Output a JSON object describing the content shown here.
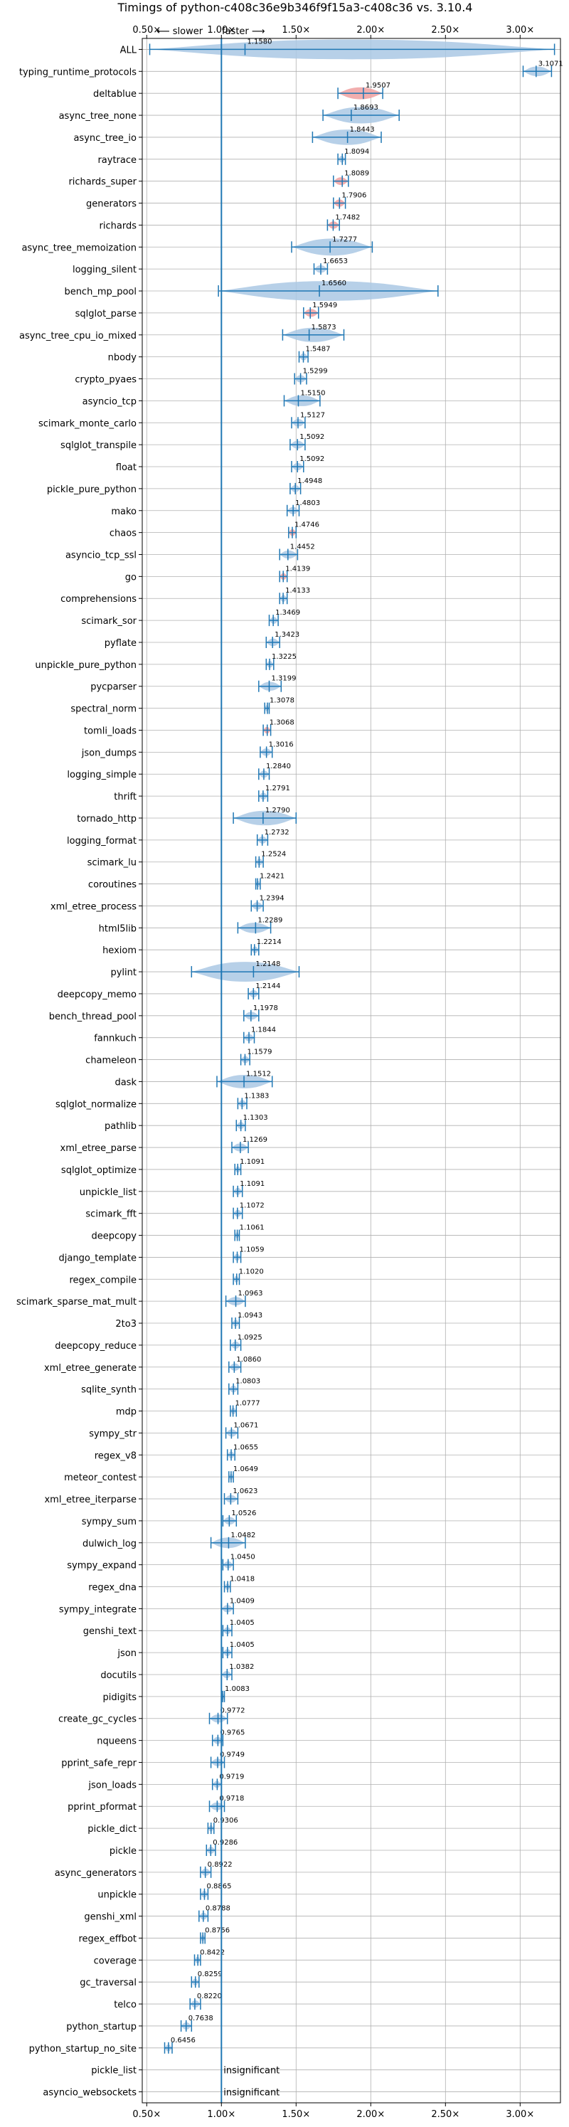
{
  "chart_data": {
    "type": "violin",
    "title": "Timings of python-c408c36e9b346f9f15a3-c408c36 vs. 3.10.4",
    "xlim": [
      0.47,
      3.27
    ],
    "x_ticks": [
      0.5,
      1.0,
      1.5,
      2.0,
      2.5,
      3.0
    ],
    "x_tick_labels": [
      "0.50×",
      "1.00×",
      "1.50×",
      "2.00×",
      "2.50×",
      "3.00×"
    ],
    "annotation_slower": "⟵ slower",
    "annotation_faster": "faster ⟶",
    "reference_line": 1.0,
    "grid": true,
    "insignificant_label": "insignificant",
    "benchmarks": [
      {
        "name": "ALL",
        "value": 1.158,
        "lo": 0.52,
        "hi": 3.23,
        "label": "1.1580"
      },
      {
        "name": "typing_runtime_protocols",
        "value": 3.1071,
        "lo": 3.02,
        "hi": 3.21,
        "label": "3.1071"
      },
      {
        "name": "deltablue",
        "value": 1.9507,
        "lo": 1.78,
        "hi": 2.08,
        "label": "1.9507",
        "color": "red"
      },
      {
        "name": "async_tree_none",
        "value": 1.8693,
        "lo": 1.68,
        "hi": 2.19,
        "label": "1.8693"
      },
      {
        "name": "async_tree_io",
        "value": 1.8443,
        "lo": 1.61,
        "hi": 2.07,
        "label": "1.8443"
      },
      {
        "name": "raytrace",
        "value": 1.8094,
        "lo": 1.78,
        "hi": 1.83,
        "label": "1.8094"
      },
      {
        "name": "richards_super",
        "value": 1.8089,
        "lo": 1.75,
        "hi": 1.85,
        "label": "1.8089",
        "color": "red"
      },
      {
        "name": "generators",
        "value": 1.7906,
        "lo": 1.75,
        "hi": 1.83,
        "label": "1.7906",
        "color": "red"
      },
      {
        "name": "richards",
        "value": 1.7482,
        "lo": 1.71,
        "hi": 1.79,
        "label": "1.7482",
        "color": "red"
      },
      {
        "name": "async_tree_memoization",
        "value": 1.7277,
        "lo": 1.47,
        "hi": 2.01,
        "label": "1.7277"
      },
      {
        "name": "logging_silent",
        "value": 1.6653,
        "lo": 1.62,
        "hi": 1.71,
        "label": "1.6653"
      },
      {
        "name": "bench_mp_pool",
        "value": 1.656,
        "lo": 0.98,
        "hi": 2.45,
        "label": "1.6560"
      },
      {
        "name": "sqlglot_parse",
        "value": 1.5949,
        "lo": 1.55,
        "hi": 1.65,
        "label": "1.5949",
        "color": "red"
      },
      {
        "name": "async_tree_cpu_io_mixed",
        "value": 1.5873,
        "lo": 1.41,
        "hi": 1.82,
        "label": "1.5873"
      },
      {
        "name": "nbody",
        "value": 1.5487,
        "lo": 1.52,
        "hi": 1.58,
        "label": "1.5487"
      },
      {
        "name": "crypto_pyaes",
        "value": 1.5299,
        "lo": 1.49,
        "hi": 1.57,
        "label": "1.5299"
      },
      {
        "name": "asyncio_tcp",
        "value": 1.515,
        "lo": 1.42,
        "hi": 1.66,
        "label": "1.5150"
      },
      {
        "name": "scimark_monte_carlo",
        "value": 1.5127,
        "lo": 1.47,
        "hi": 1.56,
        "label": "1.5127"
      },
      {
        "name": "sqlglot_transpile",
        "value": 1.5092,
        "lo": 1.46,
        "hi": 1.56,
        "label": "1.5092"
      },
      {
        "name": "float",
        "value": 1.5092,
        "lo": 1.47,
        "hi": 1.55,
        "label": "1.5092"
      },
      {
        "name": "pickle_pure_python",
        "value": 1.4948,
        "lo": 1.46,
        "hi": 1.53,
        "label": "1.4948"
      },
      {
        "name": "mako",
        "value": 1.4803,
        "lo": 1.44,
        "hi": 1.52,
        "label": "1.4803"
      },
      {
        "name": "chaos",
        "value": 1.4746,
        "lo": 1.45,
        "hi": 1.5,
        "label": "1.4746",
        "color": "red"
      },
      {
        "name": "asyncio_tcp_ssl",
        "value": 1.4452,
        "lo": 1.39,
        "hi": 1.51,
        "label": "1.4452"
      },
      {
        "name": "go",
        "value": 1.4139,
        "lo": 1.39,
        "hi": 1.44,
        "label": "1.4139",
        "color": "red"
      },
      {
        "name": "comprehensions",
        "value": 1.4133,
        "lo": 1.39,
        "hi": 1.44,
        "label": "1.4133"
      },
      {
        "name": "scimark_sor",
        "value": 1.3469,
        "lo": 1.32,
        "hi": 1.38,
        "label": "1.3469"
      },
      {
        "name": "pyflate",
        "value": 1.3423,
        "lo": 1.3,
        "hi": 1.39,
        "label": "1.3423"
      },
      {
        "name": "unpickle_pure_python",
        "value": 1.3225,
        "lo": 1.3,
        "hi": 1.35,
        "label": "1.3225"
      },
      {
        "name": "pycparser",
        "value": 1.3199,
        "lo": 1.25,
        "hi": 1.4,
        "label": "1.3199"
      },
      {
        "name": "spectral_norm",
        "value": 1.3078,
        "lo": 1.29,
        "hi": 1.32,
        "label": "1.3078"
      },
      {
        "name": "tomli_loads",
        "value": 1.3068,
        "lo": 1.28,
        "hi": 1.33,
        "label": "1.3068",
        "color": "red"
      },
      {
        "name": "json_dumps",
        "value": 1.3016,
        "lo": 1.26,
        "hi": 1.34,
        "label": "1.3016"
      },
      {
        "name": "logging_simple",
        "value": 1.284,
        "lo": 1.25,
        "hi": 1.32,
        "label": "1.2840"
      },
      {
        "name": "thrift",
        "value": 1.2791,
        "lo": 1.25,
        "hi": 1.31,
        "label": "1.2791"
      },
      {
        "name": "tornado_http",
        "value": 1.279,
        "lo": 1.08,
        "hi": 1.5,
        "label": "1.2790"
      },
      {
        "name": "logging_format",
        "value": 1.2732,
        "lo": 1.24,
        "hi": 1.31,
        "label": "1.2732"
      },
      {
        "name": "scimark_lu",
        "value": 1.2524,
        "lo": 1.23,
        "hi": 1.28,
        "label": "1.2524"
      },
      {
        "name": "coroutines",
        "value": 1.2421,
        "lo": 1.23,
        "hi": 1.26,
        "label": "1.2421"
      },
      {
        "name": "xml_etree_process",
        "value": 1.2394,
        "lo": 1.2,
        "hi": 1.28,
        "label": "1.2394"
      },
      {
        "name": "html5lib",
        "value": 1.2289,
        "lo": 1.11,
        "hi": 1.33,
        "label": "1.2289"
      },
      {
        "name": "hexiom",
        "value": 1.2214,
        "lo": 1.2,
        "hi": 1.25,
        "label": "1.2214"
      },
      {
        "name": "pylint",
        "value": 1.2148,
        "lo": 0.8,
        "hi": 1.52,
        "label": "1.2148"
      },
      {
        "name": "deepcopy_memo",
        "value": 1.2144,
        "lo": 1.18,
        "hi": 1.25,
        "label": "1.2144"
      },
      {
        "name": "bench_thread_pool",
        "value": 1.1978,
        "lo": 1.15,
        "hi": 1.25,
        "label": "1.1978"
      },
      {
        "name": "fannkuch",
        "value": 1.1844,
        "lo": 1.15,
        "hi": 1.22,
        "label": "1.1844"
      },
      {
        "name": "chameleon",
        "value": 1.1579,
        "lo": 1.13,
        "hi": 1.19,
        "label": "1.1579"
      },
      {
        "name": "dask",
        "value": 1.1512,
        "lo": 0.97,
        "hi": 1.34,
        "label": "1.1512"
      },
      {
        "name": "sqlglot_normalize",
        "value": 1.1383,
        "lo": 1.11,
        "hi": 1.17,
        "label": "1.1383"
      },
      {
        "name": "pathlib",
        "value": 1.1303,
        "lo": 1.1,
        "hi": 1.16,
        "label": "1.1303"
      },
      {
        "name": "xml_etree_parse",
        "value": 1.1269,
        "lo": 1.07,
        "hi": 1.18,
        "label": "1.1269"
      },
      {
        "name": "sqlglot_optimize",
        "value": 1.1091,
        "lo": 1.09,
        "hi": 1.13,
        "label": "1.1091"
      },
      {
        "name": "unpickle_list",
        "value": 1.1091,
        "lo": 1.08,
        "hi": 1.14,
        "label": "1.1091"
      },
      {
        "name": "scimark_fft",
        "value": 1.1072,
        "lo": 1.08,
        "hi": 1.14,
        "label": "1.1072"
      },
      {
        "name": "deepcopy",
        "value": 1.1061,
        "lo": 1.09,
        "hi": 1.12,
        "label": "1.1061"
      },
      {
        "name": "django_template",
        "value": 1.1059,
        "lo": 1.08,
        "hi": 1.13,
        "label": "1.1059"
      },
      {
        "name": "regex_compile",
        "value": 1.102,
        "lo": 1.08,
        "hi": 1.12,
        "label": "1.1020"
      },
      {
        "name": "scimark_sparse_mat_mult",
        "value": 1.0963,
        "lo": 1.03,
        "hi": 1.16,
        "label": "1.0963"
      },
      {
        "name": "2to3",
        "value": 1.0943,
        "lo": 1.07,
        "hi": 1.12,
        "label": "1.0943"
      },
      {
        "name": "deepcopy_reduce",
        "value": 1.0925,
        "lo": 1.06,
        "hi": 1.13,
        "label": "1.0925"
      },
      {
        "name": "xml_etree_generate",
        "value": 1.086,
        "lo": 1.05,
        "hi": 1.13,
        "label": "1.0860"
      },
      {
        "name": "sqlite_synth",
        "value": 1.0803,
        "lo": 1.05,
        "hi": 1.11,
        "label": "1.0803"
      },
      {
        "name": "mdp",
        "value": 1.0777,
        "lo": 1.06,
        "hi": 1.1,
        "label": "1.0777"
      },
      {
        "name": "sympy_str",
        "value": 1.0671,
        "lo": 1.03,
        "hi": 1.11,
        "label": "1.0671"
      },
      {
        "name": "regex_v8",
        "value": 1.0655,
        "lo": 1.04,
        "hi": 1.09,
        "label": "1.0655"
      },
      {
        "name": "meteor_contest",
        "value": 1.0649,
        "lo": 1.05,
        "hi": 1.08,
        "label": "1.0649"
      },
      {
        "name": "xml_etree_iterparse",
        "value": 1.0623,
        "lo": 1.02,
        "hi": 1.11,
        "label": "1.0623"
      },
      {
        "name": "sympy_sum",
        "value": 1.0526,
        "lo": 1.01,
        "hi": 1.1,
        "label": "1.0526"
      },
      {
        "name": "dulwich_log",
        "value": 1.0482,
        "lo": 0.93,
        "hi": 1.16,
        "label": "1.0482"
      },
      {
        "name": "sympy_expand",
        "value": 1.045,
        "lo": 1.01,
        "hi": 1.08,
        "label": "1.0450"
      },
      {
        "name": "regex_dna",
        "value": 1.0418,
        "lo": 1.02,
        "hi": 1.06,
        "label": "1.0418"
      },
      {
        "name": "sympy_integrate",
        "value": 1.0409,
        "lo": 1.0,
        "hi": 1.08,
        "label": "1.0409"
      },
      {
        "name": "genshi_text",
        "value": 1.0405,
        "lo": 1.01,
        "hi": 1.07,
        "label": "1.0405"
      },
      {
        "name": "json",
        "value": 1.0405,
        "lo": 1.01,
        "hi": 1.07,
        "label": "1.0405"
      },
      {
        "name": "docutils",
        "value": 1.0382,
        "lo": 1.0,
        "hi": 1.07,
        "label": "1.0382"
      },
      {
        "name": "pidigits",
        "value": 1.0083,
        "lo": 1.0,
        "hi": 1.02,
        "label": "1.0083"
      },
      {
        "name": "create_gc_cycles",
        "value": 0.9772,
        "lo": 0.92,
        "hi": 1.04,
        "label": "0.9772"
      },
      {
        "name": "nqueens",
        "value": 0.9765,
        "lo": 0.94,
        "hi": 1.01,
        "label": "0.9765"
      },
      {
        "name": "pprint_safe_repr",
        "value": 0.9749,
        "lo": 0.93,
        "hi": 1.02,
        "label": "0.9749"
      },
      {
        "name": "json_loads",
        "value": 0.9719,
        "lo": 0.94,
        "hi": 1.0,
        "label": "0.9719"
      },
      {
        "name": "pprint_pformat",
        "value": 0.9718,
        "lo": 0.92,
        "hi": 1.02,
        "label": "0.9718"
      },
      {
        "name": "pickle_dict",
        "value": 0.9306,
        "lo": 0.91,
        "hi": 0.95,
        "label": "0.9306"
      },
      {
        "name": "pickle",
        "value": 0.9286,
        "lo": 0.9,
        "hi": 0.96,
        "label": "0.9286"
      },
      {
        "name": "async_generators",
        "value": 0.8922,
        "lo": 0.86,
        "hi": 0.93,
        "label": "0.8922"
      },
      {
        "name": "unpickle",
        "value": 0.8865,
        "lo": 0.86,
        "hi": 0.91,
        "label": "0.8865"
      },
      {
        "name": "genshi_xml",
        "value": 0.8788,
        "lo": 0.85,
        "hi": 0.91,
        "label": "0.8788"
      },
      {
        "name": "regex_effbot",
        "value": 0.8756,
        "lo": 0.86,
        "hi": 0.89,
        "label": "0.8756"
      },
      {
        "name": "coverage",
        "value": 0.8422,
        "lo": 0.82,
        "hi": 0.86,
        "label": "0.8422"
      },
      {
        "name": "gc_traversal",
        "value": 0.8259,
        "lo": 0.8,
        "hi": 0.85,
        "label": "0.8259"
      },
      {
        "name": "telco",
        "value": 0.822,
        "lo": 0.79,
        "hi": 0.86,
        "label": "0.8220"
      },
      {
        "name": "python_startup",
        "value": 0.7638,
        "lo": 0.73,
        "hi": 0.8,
        "label": "0.7638"
      },
      {
        "name": "python_startup_no_site",
        "value": 0.6456,
        "lo": 0.62,
        "hi": 0.67,
        "label": "0.6456"
      },
      {
        "name": "pickle_list",
        "insignificant": true
      },
      {
        "name": "asyncio_websockets",
        "insignificant": true
      }
    ]
  }
}
